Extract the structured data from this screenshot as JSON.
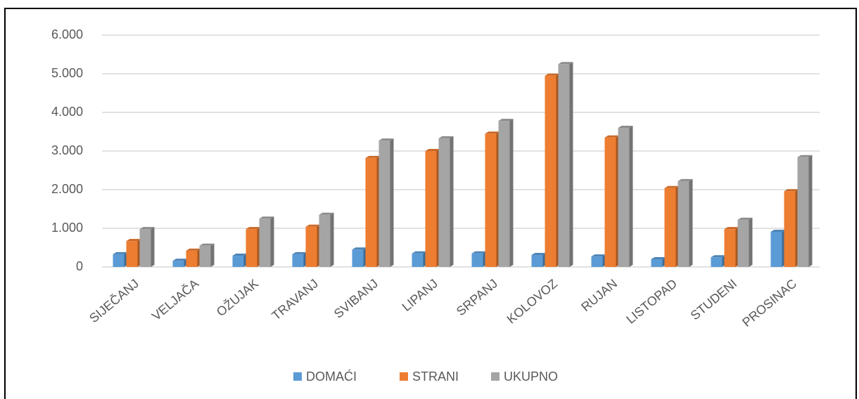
{
  "chart_data": {
    "type": "bar",
    "categories": [
      "SIJEČANJ",
      "VELJAČA",
      "OŽUJAK",
      "TRAVANJ",
      "SVIBANJ",
      "LIPANJ",
      "SRPANJ",
      "KOLOVOZ",
      "RUJAN",
      "LISTOPAD",
      "STUDENI",
      "PROSINAC"
    ],
    "series": [
      {
        "name": "DOMAĆI",
        "color": "#5b9bd5",
        "values": [
          330,
          160,
          290,
          330,
          450,
          350,
          350,
          310,
          270,
          200,
          250,
          910
        ]
      },
      {
        "name": "STRANI",
        "color": "#ed7d31",
        "values": [
          670,
          420,
          980,
          1040,
          2820,
          3000,
          3450,
          4950,
          3350,
          2040,
          980,
          1960
        ]
      },
      {
        "name": "UKUPNO",
        "color": "#a5a5a5",
        "values": [
          980,
          550,
          1250,
          1350,
          3270,
          3330,
          3780,
          5250,
          3600,
          2220,
          1220,
          2840
        ]
      }
    ],
    "ylim": [
      0,
      6000
    ],
    "yticks": [
      0,
      {
        "value": 1000,
        "label": "1.000"
      },
      {
        "value": 2000,
        "label": "2.000"
      },
      {
        "value": 3000,
        "label": "3.000"
      },
      {
        "value": 4000,
        "label": "4.000"
      },
      {
        "value": 5000,
        "label": "5.000"
      },
      {
        "value": 6000,
        "label": "6.000"
      }
    ],
    "grid": true,
    "legend": "bottom"
  }
}
